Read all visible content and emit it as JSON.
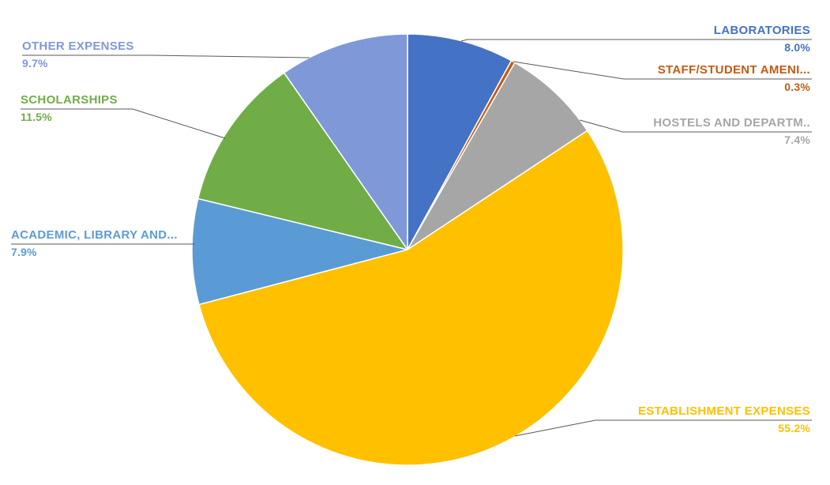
{
  "chart_data": {
    "type": "pie",
    "title": "",
    "legend": "none",
    "label_style": "outside-with-leader-lines",
    "start_angle_deg": 0,
    "direction": "clockwise",
    "leader_line_color": "#595959",
    "background_color": "#ffffff",
    "slices": [
      {
        "label": "LABORATORIES",
        "value": 8.0,
        "display": "8.0%",
        "color": "#4472C4"
      },
      {
        "label": "STAFF/STUDENT AMENI...",
        "value": 0.3,
        "display": "0.3%",
        "color": "#C55A11"
      },
      {
        "label": "HOSTELS AND DEPARTM..",
        "value": 7.4,
        "display": "7.4%",
        "color": "#A6A6A6"
      },
      {
        "label": "ESTABLISHMENT EXPENSES",
        "value": 55.2,
        "display": "55.2%",
        "color": "#FFC000"
      },
      {
        "label": "ACADEMIC, LIBRARY AND...",
        "value": 7.9,
        "display": "7.9%",
        "color": "#5B9BD5"
      },
      {
        "label": "SCHOLARSHIPS",
        "value": 11.5,
        "display": "11.5%",
        "color": "#70AD47"
      },
      {
        "label": "OTHER EXPENSES",
        "value": 9.7,
        "display": "9.7%",
        "color": "#7F98D8"
      }
    ]
  }
}
